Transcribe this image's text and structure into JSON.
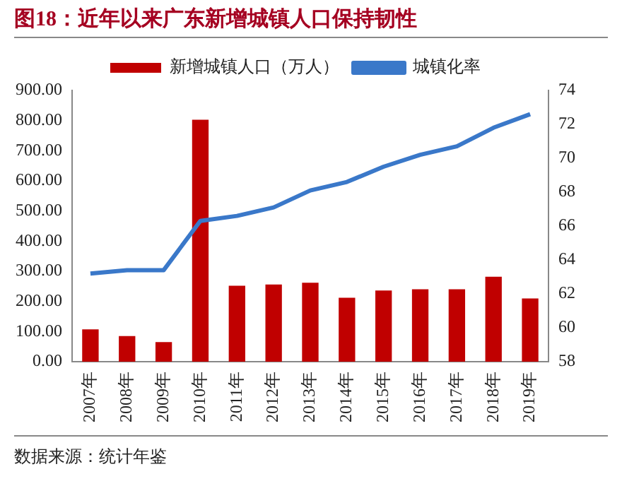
{
  "chart_data": {
    "type": "bar",
    "title": "图18：近年以来广东新增城镇人口保持韧性",
    "categories": [
      "2007年",
      "2008年",
      "2009年",
      "2010年",
      "2011年",
      "2012年",
      "2013年",
      "2014年",
      "2015年",
      "2016年",
      "2017年",
      "2018年",
      "2019年"
    ],
    "series": [
      {
        "name": "新增城镇人口（万人）",
        "color": "#c00000",
        "values": [
          107,
          85,
          65,
          803,
          252,
          256,
          262,
          212,
          236,
          240,
          240,
          282,
          210
        ]
      },
      {
        "name": "城镇化率",
        "type": "line",
        "axis": "y2",
        "color": "#3a78c9",
        "values": [
          63.2,
          63.4,
          63.4,
          66.3,
          66.6,
          67.1,
          68.1,
          68.6,
          69.5,
          70.2,
          70.7,
          71.8,
          72.6
        ]
      }
    ],
    "ylim": [
      0,
      900
    ],
    "yticks": [
      {
        "value": 0,
        "label": "0.00"
      },
      {
        "value": 100,
        "label": "100.00"
      },
      {
        "value": 200,
        "label": "200.00"
      },
      {
        "value": 300,
        "label": "300.00"
      },
      {
        "value": 400,
        "label": "400.00"
      },
      {
        "value": 500,
        "label": "500.00"
      },
      {
        "value": 600,
        "label": "600.00"
      },
      {
        "value": 700,
        "label": "700.00"
      },
      {
        "value": 800,
        "label": "800.00"
      },
      {
        "value": 900,
        "label": "900.00"
      }
    ],
    "y2lim": [
      58,
      74
    ],
    "y2ticks": [
      58,
      60,
      62,
      64,
      66,
      68,
      70,
      72,
      74
    ],
    "legend": "top",
    "grid": false,
    "marker": "none",
    "annotations": [
      "数据来源：统计年鉴"
    ]
  }
}
